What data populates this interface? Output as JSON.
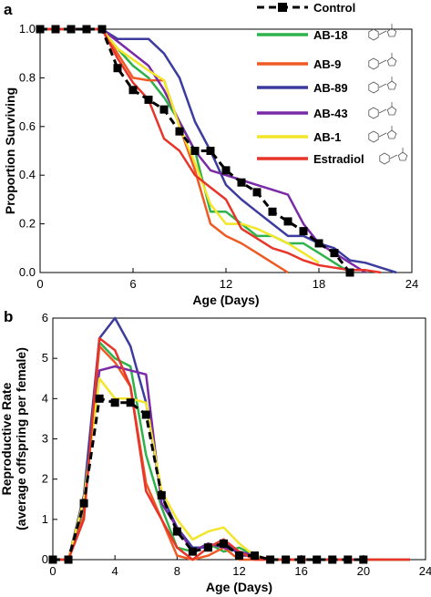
{
  "colors": {
    "Control": "#000000",
    "AB-18": "#2db34a",
    "AB-9": "#ef5a24",
    "AB-89": "#3c3c9e",
    "AB-43": "#7a2aa6",
    "AB-1": "#f2e52a",
    "Estradiol": "#e8352a"
  },
  "legend": {
    "entries": [
      "Control",
      "AB-18",
      "AB-9",
      "AB-89",
      "AB-43",
      "AB-1",
      "Estradiol"
    ]
  },
  "chart_data": [
    {
      "type": "line",
      "panel_label": "a",
      "xlabel": "Age (Days)",
      "ylabel": "Proportion Surviving",
      "xlim": [
        0,
        24
      ],
      "ylim": [
        0,
        1.0
      ],
      "xticks": [
        0,
        6,
        12,
        18,
        24
      ],
      "yticks": [
        0.0,
        0.2,
        0.4,
        0.6,
        0.8,
        1.0
      ],
      "ytick_labels": [
        "0.0",
        "0.2",
        "0.4",
        "0.6",
        "0.8",
        "1.0"
      ],
      "series": [
        {
          "name": "AB-18",
          "x": [
            0,
            3,
            4,
            5,
            6,
            7,
            8,
            9,
            10,
            11,
            12,
            13,
            14,
            15,
            16,
            17,
            18,
            19,
            20
          ],
          "y": [
            1,
            1,
            1,
            0.92,
            0.85,
            0.8,
            0.72,
            0.62,
            0.5,
            0.25,
            0.25,
            0.2,
            0.15,
            0.15,
            0.12,
            0.12,
            0.08,
            0.04,
            0
          ]
        },
        {
          "name": "AB-9",
          "x": [
            0,
            3,
            4,
            5,
            6,
            7,
            8,
            9,
            10,
            11,
            12,
            13,
            14,
            15,
            16
          ],
          "y": [
            1,
            1,
            1,
            0.9,
            0.8,
            0.79,
            0.79,
            0.6,
            0.42,
            0.2,
            0.15,
            0.12,
            0.08,
            0.04,
            0
          ]
        },
        {
          "name": "AB-89",
          "x": [
            0,
            4,
            5,
            7,
            8,
            9,
            10,
            11,
            12,
            13,
            14,
            15,
            16,
            17,
            18,
            19,
            20,
            21,
            22,
            23
          ],
          "y": [
            1,
            1,
            0.96,
            0.96,
            0.9,
            0.8,
            0.62,
            0.5,
            0.36,
            0.3,
            0.25,
            0.2,
            0.15,
            0.15,
            0.12,
            0.1,
            0.05,
            0.04,
            0.02,
            0
          ]
        },
        {
          "name": "AB-43",
          "x": [
            0,
            4,
            5,
            7,
            8,
            9,
            10,
            11,
            12,
            13,
            14,
            15,
            16,
            17,
            18,
            19,
            20,
            21
          ],
          "y": [
            1,
            1,
            0.95,
            0.85,
            0.75,
            0.62,
            0.5,
            0.42,
            0.4,
            0.38,
            0.36,
            0.34,
            0.32,
            0.2,
            0.12,
            0.08,
            0.04,
            0
          ]
        },
        {
          "name": "AB-1",
          "x": [
            0,
            4,
            5,
            7,
            8,
            9,
            10,
            11,
            12,
            13,
            14,
            15,
            16,
            17,
            18
          ],
          "y": [
            1,
            1,
            0.92,
            0.83,
            0.79,
            0.6,
            0.45,
            0.28,
            0.2,
            0.2,
            0.18,
            0.15,
            0.12,
            0.08,
            0.04
          ]
        },
        {
          "name": "Estradiol",
          "x": [
            0,
            3,
            4,
            5,
            6,
            7,
            8,
            9,
            10,
            11,
            12,
            13,
            14,
            15,
            16,
            17,
            18,
            19,
            20,
            21,
            22
          ],
          "y": [
            1,
            1,
            1,
            0.88,
            0.78,
            0.71,
            0.55,
            0.5,
            0.4,
            0.35,
            0.3,
            0.18,
            0.14,
            0.1,
            0.08,
            0.05,
            0.03,
            0.02,
            0.01,
            0.01,
            0
          ]
        },
        {
          "name": "Control",
          "x": [
            0,
            1,
            2,
            3,
            4,
            5,
            6,
            7,
            8,
            9,
            10,
            11,
            12,
            13,
            14,
            15,
            16,
            17,
            18,
            19,
            20
          ],
          "y": [
            1,
            1,
            1,
            1,
            1,
            0.84,
            0.75,
            0.71,
            0.67,
            0.58,
            0.5,
            0.5,
            0.42,
            0.37,
            0.33,
            0.25,
            0.21,
            0.17,
            0.12,
            0.08,
            0
          ]
        }
      ]
    },
    {
      "type": "line",
      "panel_label": "b",
      "xlabel": "Age (Days)",
      "ylabel": [
        "Reproductive Rate",
        "(average offspring per female)"
      ],
      "xlim": [
        0,
        24
      ],
      "ylim": [
        0,
        6
      ],
      "xticks": [
        0,
        4,
        8,
        12,
        16,
        20,
        24
      ],
      "yticks": [
        0,
        1,
        2,
        3,
        4,
        5,
        6
      ],
      "series": [
        {
          "name": "AB-18",
          "x": [
            0,
            1,
            2,
            3,
            4,
            5,
            6,
            7,
            8,
            9,
            10,
            11,
            12,
            13,
            14,
            15,
            16,
            17,
            18,
            19,
            20,
            21,
            22,
            23
          ],
          "y": [
            0,
            0,
            1.3,
            5.4,
            5.0,
            4.8,
            2.6,
            1.3,
            0.3,
            0.2,
            0.4,
            0.2,
            0.3,
            0.1,
            0,
            0,
            0,
            0,
            0,
            0,
            0,
            0,
            0,
            0
          ]
        },
        {
          "name": "AB-9",
          "x": [
            0,
            1,
            2,
            3,
            4,
            5,
            6,
            7,
            8,
            9,
            10,
            11,
            12,
            13,
            14,
            15,
            16,
            17,
            18,
            19,
            20,
            21,
            22,
            23
          ],
          "y": [
            0,
            0,
            1.1,
            5.3,
            4.9,
            4.3,
            1.9,
            1.0,
            0.1,
            0,
            0.1,
            0.3,
            0,
            0,
            0,
            0,
            0,
            0,
            0,
            0,
            0,
            0,
            0,
            0
          ]
        },
        {
          "name": "AB-89",
          "x": [
            0,
            1,
            2,
            3,
            4,
            5,
            6,
            7,
            8,
            9,
            10,
            11,
            12,
            13,
            14,
            15,
            16,
            17,
            18,
            19,
            20,
            21,
            22,
            23
          ],
          "y": [
            0,
            0,
            1.6,
            5.5,
            6.0,
            5.3,
            3.9,
            1.6,
            0.8,
            0.3,
            0.3,
            0.5,
            0.1,
            0.1,
            0,
            0,
            0,
            0,
            0,
            0,
            0,
            0,
            0,
            0
          ]
        },
        {
          "name": "AB-43",
          "x": [
            0,
            1,
            2,
            3,
            4,
            5,
            6,
            7,
            8,
            9,
            10,
            11,
            12,
            13,
            14,
            15,
            16,
            17,
            18,
            19,
            20,
            21,
            22,
            23
          ],
          "y": [
            0,
            0,
            1.4,
            4.7,
            4.8,
            4.7,
            4.6,
            1.4,
            0.8,
            0.2,
            0.4,
            0.3,
            0.2,
            0.1,
            0,
            0,
            0,
            0,
            0,
            0,
            0,
            0,
            0,
            0
          ]
        },
        {
          "name": "AB-1",
          "x": [
            0,
            1,
            2,
            3,
            4,
            5,
            6,
            7,
            8,
            9,
            10,
            11,
            12,
            13,
            14,
            15,
            16,
            17,
            18,
            19,
            20,
            21,
            22,
            23
          ],
          "y": [
            0,
            0,
            1.5,
            4.5,
            4.0,
            4.0,
            3.9,
            1.7,
            1.0,
            0.5,
            0.7,
            0.8,
            0.4,
            0.1,
            0,
            0,
            0,
            0,
            0,
            0,
            0,
            0,
            0,
            0
          ]
        },
        {
          "name": "Estradiol",
          "x": [
            0,
            1,
            2,
            3,
            4,
            5,
            6,
            7,
            8,
            9,
            10,
            11,
            12,
            13,
            14,
            15,
            16,
            17,
            18,
            19,
            20,
            21,
            22,
            23
          ],
          "y": [
            0,
            0,
            1.0,
            5.5,
            5.2,
            4.3,
            1.7,
            1.0,
            0.3,
            0,
            0.3,
            0.5,
            0.2,
            0,
            0,
            0,
            0,
            0,
            0,
            0,
            0,
            0,
            0,
            0
          ]
        },
        {
          "name": "Control",
          "x": [
            0,
            1,
            2,
            3,
            4,
            5,
            6,
            7,
            8,
            9,
            10,
            11,
            12,
            13,
            14,
            15,
            16,
            17,
            18,
            19,
            20
          ],
          "y": [
            0,
            0,
            1.4,
            4.0,
            3.9,
            3.9,
            3.6,
            1.6,
            0.7,
            0.2,
            0.3,
            0.4,
            0.1,
            0.1,
            0,
            0,
            0,
            0,
            0,
            0,
            0
          ]
        }
      ]
    }
  ]
}
